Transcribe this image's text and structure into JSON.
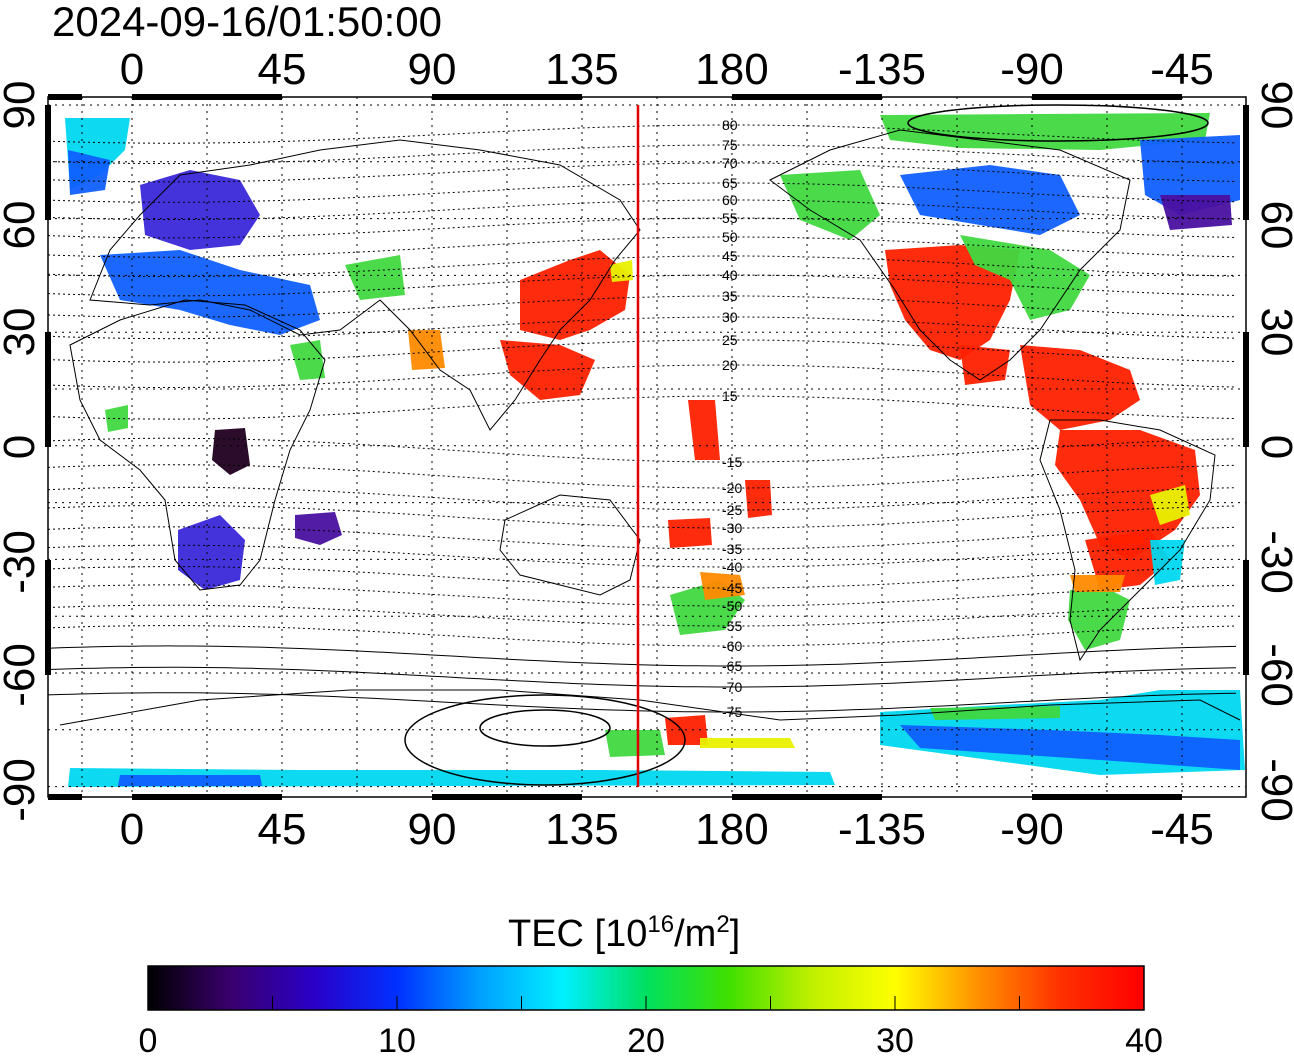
{
  "title": "2024-09-16/01:50:00",
  "map": {
    "x_ticks": [
      "0",
      "45",
      "90",
      "135",
      "180",
      "-135",
      "-90",
      "-45"
    ],
    "y_ticks": [
      "90",
      "60",
      "30",
      "0",
      "-30",
      "-60",
      "-90"
    ],
    "meridian_line_color": "#e00000",
    "contour_labels": [
      "80",
      "75",
      "70",
      "65",
      "60",
      "55",
      "50",
      "45",
      "40",
      "35",
      "30",
      "25",
      "20",
      "15",
      "-15",
      "-20",
      "-25",
      "-30",
      "-35",
      "-40",
      "-45",
      "-50",
      "-55",
      "-60",
      "-65",
      "-70",
      "-75"
    ]
  },
  "colorbar": {
    "title": "TEC  [10",
    "title_exp": "16",
    "title_unit": "/m",
    "title_unit_exp": "2",
    "title_close": "]",
    "tick_labels": [
      "0",
      "10",
      "20",
      "30",
      "40"
    ],
    "min": 0,
    "max": 40,
    "colors": [
      "#000000",
      "#3a006e",
      "#2a00c8",
      "#0030ff",
      "#00a0ff",
      "#00f0ff",
      "#00e060",
      "#40e000",
      "#c0f000",
      "#ffff00",
      "#ff9000",
      "#ff3000",
      "#ff0000"
    ]
  },
  "patch_colors": {
    "red": "#ff2000",
    "orange": "#ff8a00",
    "yellow": "#e8f000",
    "green": "#40d840",
    "cyan": "#00d8f0",
    "blue": "#1060ff",
    "indigo": "#3a28d8",
    "purple": "#4a10a0",
    "dark": "#200020"
  }
}
